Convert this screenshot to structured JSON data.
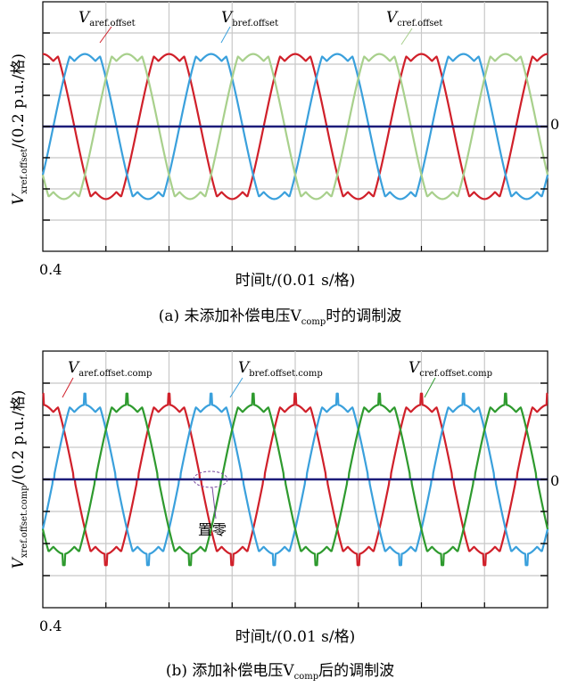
{
  "chart_data": [
    {
      "type": "line",
      "panel": "a",
      "caption": "(a) 未添加补偿电压V",
      "caption_sub": "comp",
      "caption_tail": "时的调制波",
      "xlabel": "时间t/(0.01 s/格)",
      "ylabel": "V",
      "ylabel_sub": "xref.offset",
      "ylabel_tail": "/(0.2 p.u./格)",
      "x_tick_label": "0.4",
      "zero_label": "0",
      "grid": true,
      "x_divisions": 8,
      "y_divisions": 8,
      "xlim": [
        0.4,
        0.48
      ],
      "ylim": [
        -0.8,
        0.8
      ],
      "series": [
        {
          "name": "V",
          "name_sub": "aref.offset",
          "color": "#d0202a",
          "amplitude": 0.45,
          "phase_deg": 90
        },
        {
          "name": "V",
          "name_sub": "bref.offset",
          "color": "#3aa0dc",
          "amplitude": 0.45,
          "phase_deg": -30
        },
        {
          "name": "V",
          "name_sub": "cref.offset",
          "color": "#a8d08c",
          "amplitude": 0.45,
          "phase_deg": 210
        },
        {
          "name": "",
          "color": "#1c1c7a",
          "constant": 0
        }
      ]
    },
    {
      "type": "line",
      "panel": "b",
      "caption": "(b) 添加补偿电压V",
      "caption_sub": "comp",
      "caption_tail": "后的调制波",
      "xlabel": "时间t/(0.01 s/格)",
      "ylabel": "V",
      "ylabel_sub": "xref.offset.comp",
      "ylabel_tail": "/(0.2 p.u./格)",
      "x_tick_label": "0.4",
      "zero_label": "0",
      "annotation": "置零",
      "grid": true,
      "x_divisions": 8,
      "y_divisions": 8,
      "xlim": [
        0.4,
        0.48
      ],
      "ylim": [
        -0.8,
        0.8
      ],
      "series": [
        {
          "name": "V",
          "name_sub": "aref.offset.comp",
          "color": "#d0202a",
          "amplitude": 0.45,
          "phase_deg": 90
        },
        {
          "name": "V",
          "name_sub": "bref.offset.comp",
          "color": "#3aa0dc",
          "amplitude": 0.45,
          "phase_deg": -30
        },
        {
          "name": "V",
          "name_sub": "cref.offset.comp",
          "color": "#2e9a2e",
          "amplitude": 0.45,
          "phase_deg": 210
        },
        {
          "name": "",
          "color": "#1c1c7a",
          "constant": 0
        }
      ]
    }
  ]
}
